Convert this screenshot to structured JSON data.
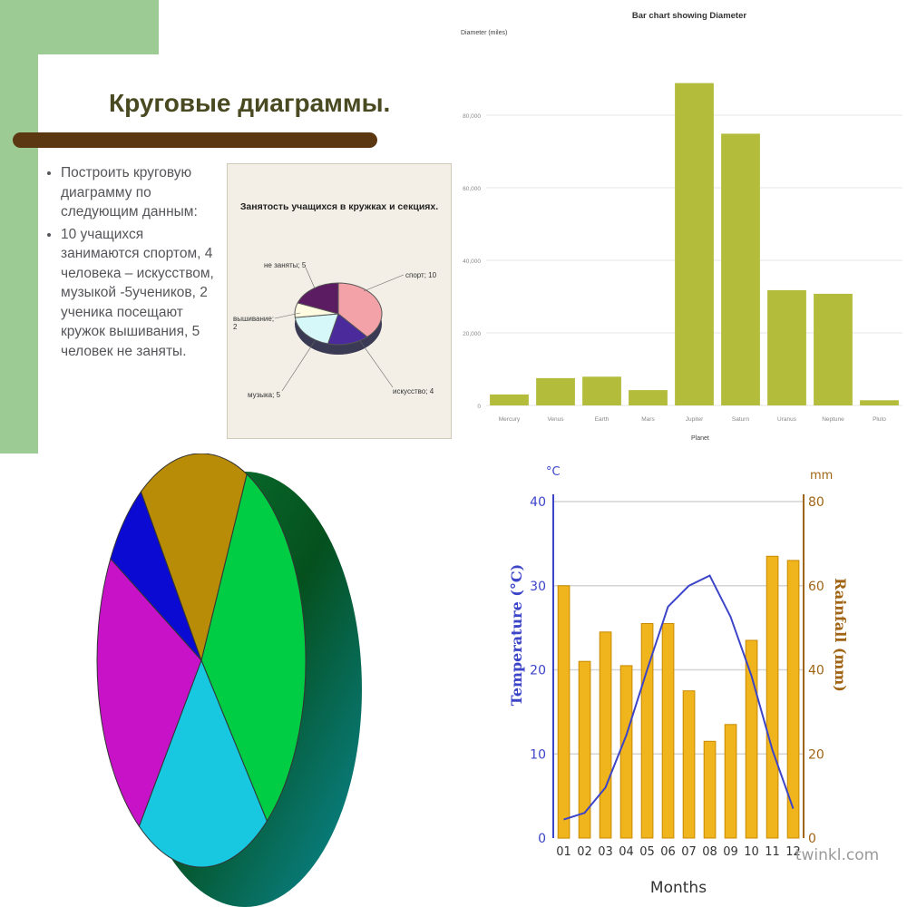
{
  "slide": {
    "title": "Круговые диаграммы.",
    "bullets": [
      "Построить круговую диаграмму по следующим данным:",
      "10 учащихся занимаются спортом, 4 человека – искусством, музыкой -5учеников, 2 ученика посещают кружок вышивания, 5 человек не заняты."
    ],
    "colors": {
      "bg_green": "#9ccc94",
      "bar_brown": "#5b3712",
      "title_color": "#4a4a22"
    }
  },
  "chart_data": [
    {
      "type": "pie",
      "title": "Занятость учащихся в кружках и секциях.",
      "categories": [
        "спорт",
        "искусство",
        "музыка",
        "вышивание",
        "не заняты"
      ],
      "labels": [
        "спорт; 10",
        "искусство; 4",
        "музыка; 5",
        "вышивание; 2",
        "не заняты; 5"
      ],
      "values": [
        10,
        4,
        5,
        2,
        5
      ],
      "colors": [
        "#f3a3a8",
        "#4b2a9c",
        "#d6f8f8",
        "#fffbe0",
        "#5c1c62"
      ]
    },
    {
      "type": "bar",
      "title": "Bar chart showing Diameter",
      "ylabel": "Diameter (miles)",
      "xlabel": "Planet",
      "categories": [
        "Mercury",
        "Venus",
        "Earth",
        "Mars",
        "Jupiter",
        "Saturn",
        "Uranus",
        "Neptune",
        "Pluto"
      ],
      "values": [
        3032,
        7521,
        7926,
        4222,
        88846,
        74898,
        31763,
        30775,
        1430
      ],
      "ylim": [
        0,
        100000
      ],
      "yticks": [
        "0",
        "20,000",
        "40,000",
        "60,000",
        "80,000"
      ],
      "grid": true,
      "bar_color": "#b4bc3c"
    },
    {
      "type": "pie",
      "values": [
        32,
        21,
        23,
        7,
        17
      ],
      "colors": [
        "#00cc44",
        "#17c8e0",
        "#c812c8",
        "#0a0ad2",
        "#b88c06"
      ]
    },
    {
      "type": "bar",
      "categories": [
        "01",
        "02",
        "03",
        "04",
        "05",
        "06",
        "07",
        "08",
        "09",
        "10",
        "11",
        "12"
      ],
      "xlabel": "Months",
      "series": [
        {
          "name": "Rainfall (mm)",
          "type": "bar",
          "axis": "right",
          "values": [
            60,
            42,
            49,
            41,
            51,
            51,
            35,
            23,
            27,
            47,
            67,
            66
          ],
          "color": "#f0b41c"
        },
        {
          "name": "Temperature (°C)",
          "type": "line",
          "axis": "left",
          "values": [
            2.2,
            3,
            6,
            12.2,
            20,
            27.5,
            30,
            31.2,
            26.3,
            19.3,
            10.5,
            3.5
          ],
          "color": "#3c44c8"
        }
      ],
      "ylabel_left": "Temperature (°C)",
      "ylabel_right": "Rainfall (mm)",
      "unit_left": "°C",
      "unit_right": "mm",
      "ylim_left": [
        0,
        40
      ],
      "ylim_right": [
        0,
        80
      ],
      "yticks_left": [
        0,
        10,
        20,
        30,
        40
      ],
      "yticks_right": [
        0,
        20,
        40,
        60,
        80
      ],
      "grid": true,
      "watermark": "twinkl.com"
    }
  ]
}
